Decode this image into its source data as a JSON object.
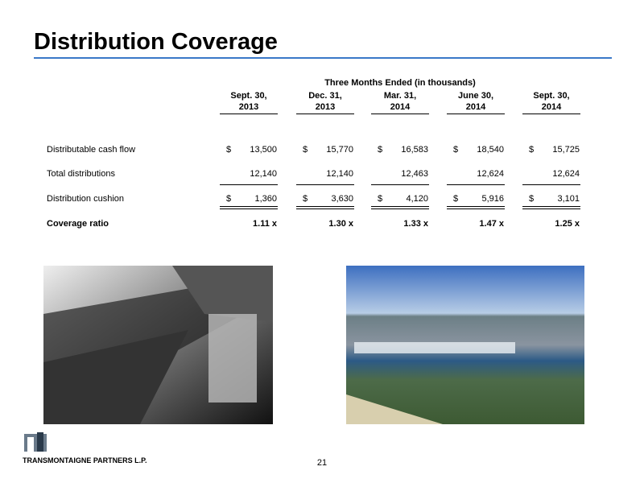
{
  "header": {
    "title": "Distribution Coverage"
  },
  "table": {
    "caption": "Three Months Ended (in thousands)",
    "columns": [
      [
        "Sept. 30,",
        "2013"
      ],
      [
        "Dec. 31,",
        "2013"
      ],
      [
        "Mar. 31,",
        "2014"
      ],
      [
        "June 30,",
        "2014"
      ],
      [
        "Sept. 30,",
        "2014"
      ]
    ],
    "rows": [
      {
        "label": "Distributable cash flow",
        "cells": [
          {
            "currency": "$",
            "amount": "13,500"
          },
          {
            "currency": "$",
            "amount": "15,770"
          },
          {
            "currency": "$",
            "amount": "16,583"
          },
          {
            "currency": "$",
            "amount": "18,540"
          },
          {
            "currency": "$",
            "amount": "15,725"
          }
        ]
      },
      {
        "label": "Total distributions",
        "cells": [
          {
            "amount": "12,140"
          },
          {
            "amount": "12,140"
          },
          {
            "amount": "12,463"
          },
          {
            "amount": "12,624"
          },
          {
            "amount": "12,624"
          }
        ]
      },
      {
        "label": "Distribution cushion",
        "cells": [
          {
            "currency": "$",
            "amount": "1,360"
          },
          {
            "currency": "$",
            "amount": "3,630"
          },
          {
            "currency": "$",
            "amount": "4,120"
          },
          {
            "currency": "$",
            "amount": "5,916"
          },
          {
            "currency": "$",
            "amount": "3,101"
          }
        ]
      },
      {
        "label": "Coverage ratio",
        "cells": [
          {
            "amount": "1.11 x"
          },
          {
            "amount": "1.30 x"
          },
          {
            "amount": "1.33 x"
          },
          {
            "amount": "1.47 x"
          },
          {
            "amount": "1.25 x"
          }
        ]
      }
    ]
  },
  "footer": {
    "company": "TRANSMONTAIGNE PARTNERS L.P.",
    "page": "21"
  }
}
